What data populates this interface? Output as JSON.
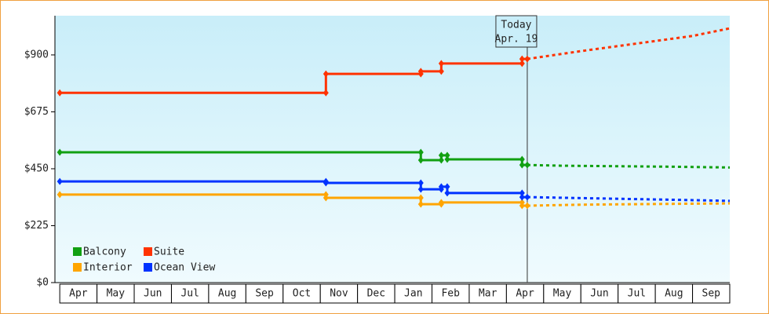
{
  "chart_data": {
    "type": "line",
    "xlim": [
      -0.13,
      18
    ],
    "ylim": [
      0,
      1055
    ],
    "yticks": [
      {
        "value": 0,
        "label": "$0"
      },
      {
        "value": 225,
        "label": "$225"
      },
      {
        "value": 450,
        "label": "$450"
      },
      {
        "value": 675,
        "label": "$675"
      },
      {
        "value": 900,
        "label": "$900"
      }
    ],
    "xticks": [
      {
        "value": 0.5,
        "label": "Apr"
      },
      {
        "value": 1.5,
        "label": "May"
      },
      {
        "value": 2.5,
        "label": "Jun"
      },
      {
        "value": 3.5,
        "label": "Jul"
      },
      {
        "value": 4.5,
        "label": "Aug"
      },
      {
        "value": 5.5,
        "label": "Sep"
      },
      {
        "value": 6.5,
        "label": "Oct"
      },
      {
        "value": 7.5,
        "label": "Nov"
      },
      {
        "value": 8.5,
        "label": "Dec"
      },
      {
        "value": 9.5,
        "label": "Jan"
      },
      {
        "value": 10.5,
        "label": "Feb"
      },
      {
        "value": 11.5,
        "label": "Mar"
      },
      {
        "value": 12.5,
        "label": "Apr"
      },
      {
        "value": 13.5,
        "label": "May"
      },
      {
        "value": 14.5,
        "label": "Jun"
      },
      {
        "value": 15.5,
        "label": "Jul"
      },
      {
        "value": 16.5,
        "label": "Aug"
      },
      {
        "value": 17.5,
        "label": "Sep"
      }
    ],
    "today": {
      "x": 12.56,
      "label": "Today",
      "date": "Apr. 19"
    },
    "series": [
      {
        "name": "Balcony",
        "color": "#12a012",
        "x": [
          0,
          9.7,
          9.7,
          10.25,
          10.25,
          10.41,
          10.41,
          12.42,
          12.42,
          12.56
        ],
        "values": [
          515,
          515,
          484,
          484,
          503,
          503,
          487,
          487,
          465,
          465
        ],
        "forecast_x": [
          12.56,
          13.5,
          15,
          16.5,
          18
        ],
        "forecast_values": [
          465,
          462,
          460,
          458,
          455
        ]
      },
      {
        "name": "Suite",
        "color": "#ff3300",
        "x": [
          0,
          7.15,
          7.15,
          9.7,
          9.7,
          10.25,
          10.25,
          12.42,
          12.42,
          12.56
        ],
        "values": [
          750,
          750,
          825,
          825,
          835,
          835,
          866,
          866,
          884,
          884
        ],
        "forecast_x": [
          12.56,
          14,
          15.5,
          17,
          18
        ],
        "forecast_values": [
          884,
          915,
          945,
          975,
          1005
        ]
      },
      {
        "name": "Interior",
        "color": "#ffa500",
        "x": [
          0,
          7.15,
          7.15,
          9.7,
          9.7,
          10.25,
          10.25,
          12.42,
          12.42,
          12.56
        ],
        "values": [
          348,
          348,
          335,
          335,
          310,
          310,
          317,
          317,
          304,
          304
        ],
        "forecast_x": [
          12.56,
          14,
          15.5,
          17,
          18
        ],
        "forecast_values": [
          304,
          308,
          310,
          312,
          313
        ]
      },
      {
        "name": "Ocean View",
        "color": "#0033ff",
        "x": [
          0,
          7.15,
          7.15,
          9.7,
          9.7,
          10.25,
          10.25,
          10.41,
          10.41,
          12.42,
          12.42,
          12.56
        ],
        "values": [
          400,
          400,
          394,
          394,
          369,
          369,
          379,
          379,
          354,
          354,
          338,
          338
        ],
        "forecast_x": [
          12.56,
          14,
          15.5,
          17,
          18
        ],
        "forecast_values": [
          338,
          334,
          330,
          326,
          323
        ]
      }
    ]
  }
}
